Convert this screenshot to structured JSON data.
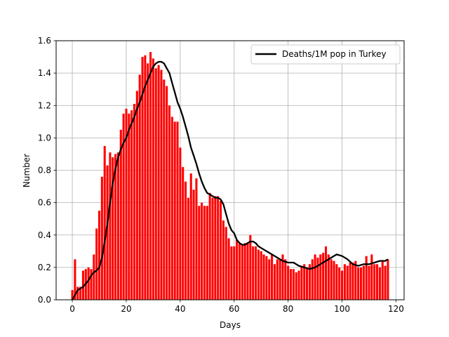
{
  "chart_data": {
    "type": "bar",
    "xlabel": "Days",
    "ylabel": "Number",
    "xlim": [
      -6,
      123
    ],
    "ylim": [
      0,
      1.6
    ],
    "xticks": [
      0,
      20,
      40,
      60,
      80,
      100,
      120
    ],
    "yticks": [
      0.0,
      0.2,
      0.4,
      0.6,
      0.8,
      1.0,
      1.2,
      1.4,
      1.6
    ],
    "xtick_labels": [
      "0",
      "20",
      "40",
      "60",
      "80",
      "100",
      "120"
    ],
    "ytick_labels": [
      "0.0",
      "0.2",
      "0.4",
      "0.6",
      "0.8",
      "1.0",
      "1.2",
      "1.4",
      "1.6"
    ],
    "grid": true,
    "legend_position": "top-right",
    "bar_color": "#ff0000",
    "line_color": "#000000",
    "bars": {
      "x_start": 0,
      "values": [
        0.06,
        0.25,
        0.08,
        0.08,
        0.18,
        0.19,
        0.2,
        0.19,
        0.28,
        0.44,
        0.55,
        0.76,
        0.95,
        0.83,
        0.91,
        0.88,
        0.9,
        0.91,
        1.05,
        1.15,
        1.18,
        1.15,
        1.17,
        1.21,
        1.29,
        1.39,
        1.5,
        1.51,
        1.46,
        1.53,
        1.49,
        1.43,
        1.45,
        1.42,
        1.36,
        1.32,
        1.2,
        1.13,
        1.1,
        1.1,
        0.94,
        0.82,
        0.73,
        0.63,
        0.78,
        0.68,
        0.75,
        0.58,
        0.6,
        0.58,
        0.58,
        0.66,
        0.63,
        0.64,
        0.64,
        0.61,
        0.49,
        0.45,
        0.38,
        0.33,
        0.33,
        0.37,
        0.35,
        0.34,
        0.35,
        0.35,
        0.4,
        0.33,
        0.33,
        0.31,
        0.3,
        0.28,
        0.27,
        0.25,
        0.28,
        0.22,
        0.25,
        0.25,
        0.28,
        0.25,
        0.21,
        0.19,
        0.19,
        0.17,
        0.18,
        0.21,
        0.22,
        0.2,
        0.22,
        0.25,
        0.28,
        0.26,
        0.28,
        0.29,
        0.33,
        0.28,
        0.25,
        0.24,
        0.22,
        0.2,
        0.18,
        0.22,
        0.21,
        0.23,
        0.23,
        0.24,
        0.2,
        0.2,
        0.21,
        0.27,
        0.21,
        0.28,
        0.22,
        0.22,
        0.2,
        0.24,
        0.21,
        0.25
      ]
    },
    "series": [
      {
        "name": "Deaths/1M pop in Turkey",
        "x": [
          0,
          2,
          4,
          6,
          7,
          8,
          9,
          10,
          11,
          12,
          13,
          14,
          15,
          16,
          17,
          18,
          19,
          20,
          21,
          22,
          23,
          24,
          25,
          26,
          27,
          28,
          29,
          30,
          31,
          32,
          33,
          34,
          35,
          36,
          37,
          38,
          39,
          40,
          41,
          42,
          43,
          44,
          45,
          46,
          47,
          48,
          49,
          50,
          51,
          52,
          53,
          54,
          55,
          56,
          57,
          58,
          59,
          60,
          61,
          62,
          63,
          64,
          65,
          66,
          67,
          68,
          69,
          70,
          72,
          74,
          76,
          78,
          80,
          82,
          84,
          86,
          88,
          90,
          92,
          94,
          96,
          97,
          98,
          100,
          102,
          104,
          106,
          108,
          110,
          112,
          114,
          116,
          117
        ],
        "y": [
          0.0,
          0.06,
          0.08,
          0.12,
          0.15,
          0.17,
          0.18,
          0.2,
          0.26,
          0.36,
          0.47,
          0.6,
          0.72,
          0.81,
          0.88,
          0.93,
          0.97,
          1.0,
          1.05,
          1.09,
          1.13,
          1.18,
          1.22,
          1.27,
          1.32,
          1.36,
          1.4,
          1.44,
          1.46,
          1.47,
          1.47,
          1.46,
          1.43,
          1.4,
          1.34,
          1.28,
          1.22,
          1.18,
          1.13,
          1.07,
          1.01,
          0.94,
          0.89,
          0.84,
          0.78,
          0.73,
          0.69,
          0.66,
          0.65,
          0.64,
          0.63,
          0.63,
          0.62,
          0.59,
          0.53,
          0.47,
          0.43,
          0.41,
          0.37,
          0.35,
          0.34,
          0.34,
          0.35,
          0.36,
          0.36,
          0.35,
          0.33,
          0.32,
          0.3,
          0.28,
          0.26,
          0.24,
          0.23,
          0.23,
          0.21,
          0.2,
          0.19,
          0.2,
          0.22,
          0.24,
          0.26,
          0.27,
          0.28,
          0.27,
          0.25,
          0.22,
          0.21,
          0.22,
          0.22,
          0.23,
          0.24,
          0.24,
          0.25
        ]
      }
    ]
  }
}
